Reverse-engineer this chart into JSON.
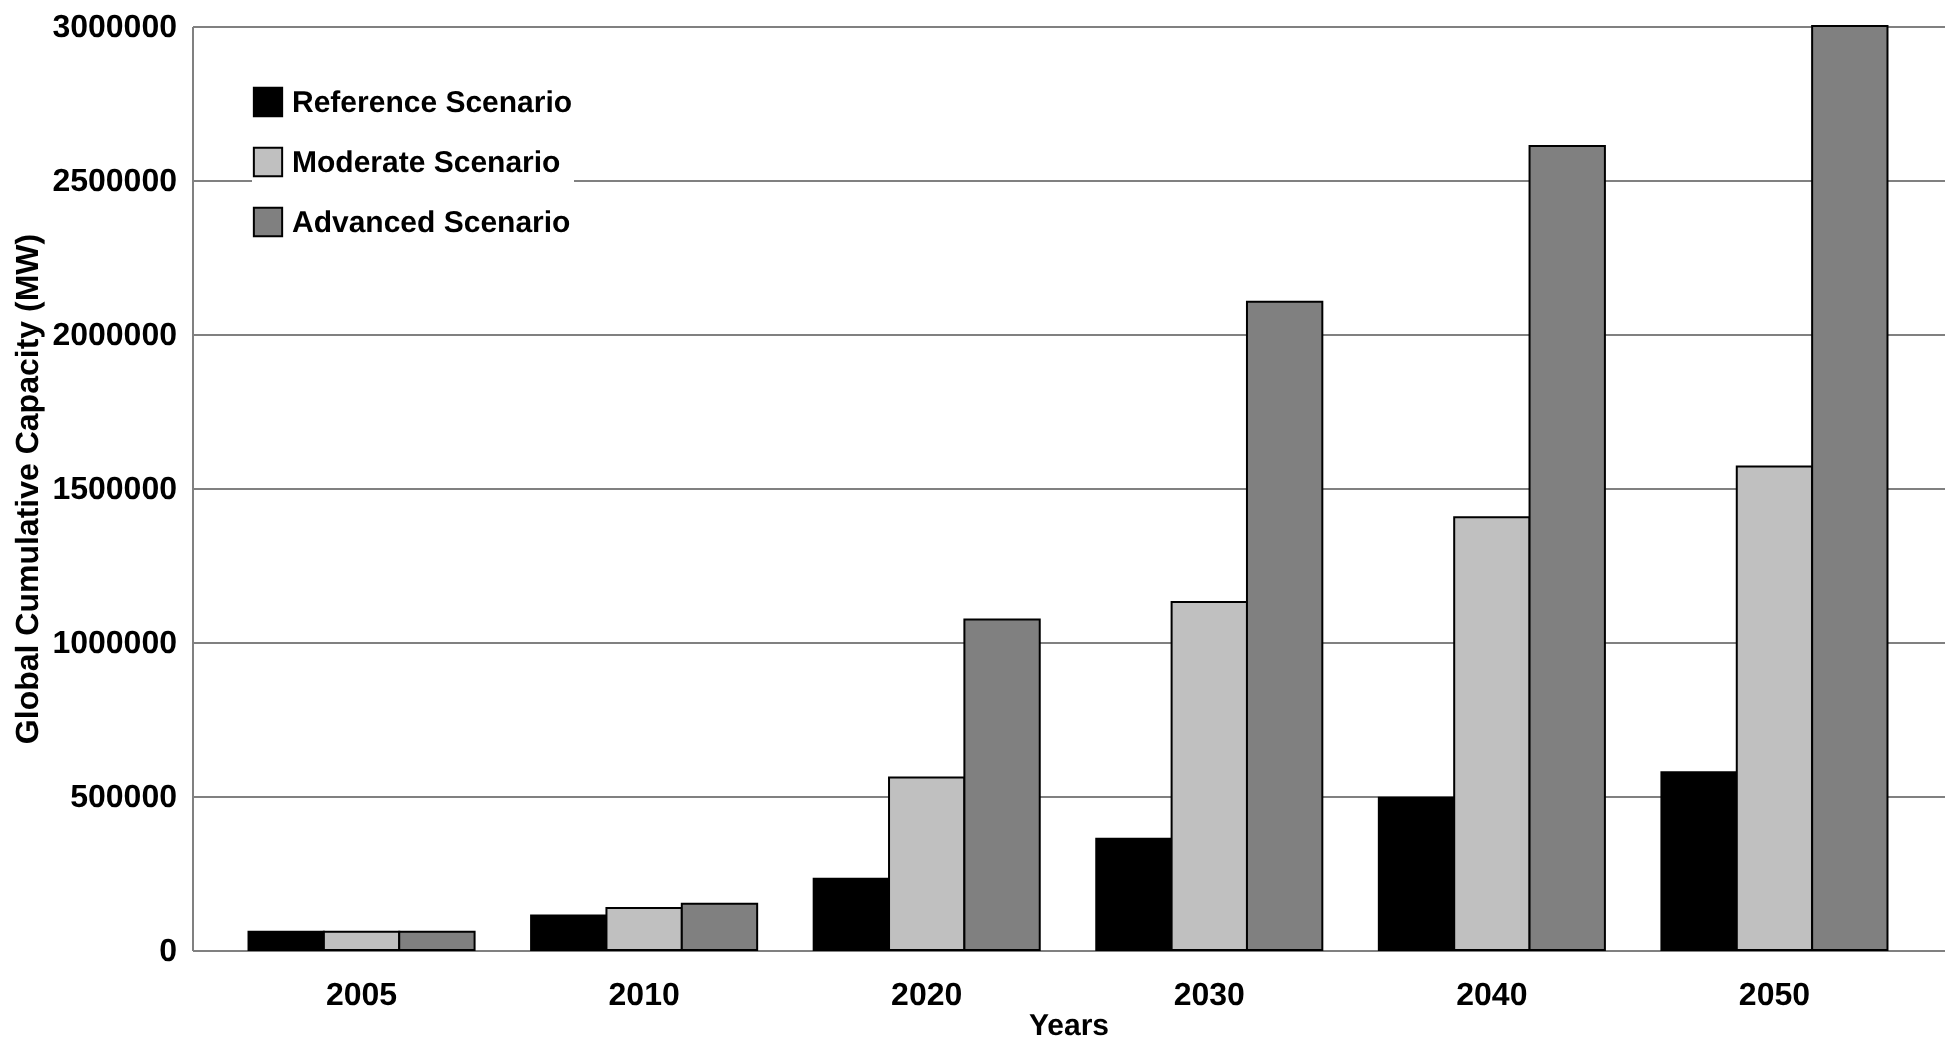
{
  "chart_data": {
    "type": "bar",
    "xlabel": "Years",
    "ylabel": "Global Cumulative Capacity (MW)",
    "categories": [
      "2005",
      "2010",
      "2020",
      "2030",
      "2040",
      "2050"
    ],
    "series": [
      {
        "name": "Reference Scenario",
        "color": "#000000",
        "values": [
          59000,
          112000,
          231000,
          361000,
          494000,
          577000
        ]
      },
      {
        "name": "Moderate Scenario",
        "color": "#c0c0c0",
        "values": [
          59000,
          136000,
          560000,
          1130000,
          1405000,
          1570000
        ]
      },
      {
        "name": "Advanced Scenario",
        "color": "#808080",
        "values": [
          59000,
          150000,
          1073000,
          2105000,
          2610000,
          3000000
        ]
      }
    ],
    "ylim": [
      0,
      3000000
    ],
    "yticks": [
      0,
      500000,
      1000000,
      1500000,
      2000000,
      2500000,
      3000000
    ],
    "grid": "y",
    "legend": "top left"
  }
}
